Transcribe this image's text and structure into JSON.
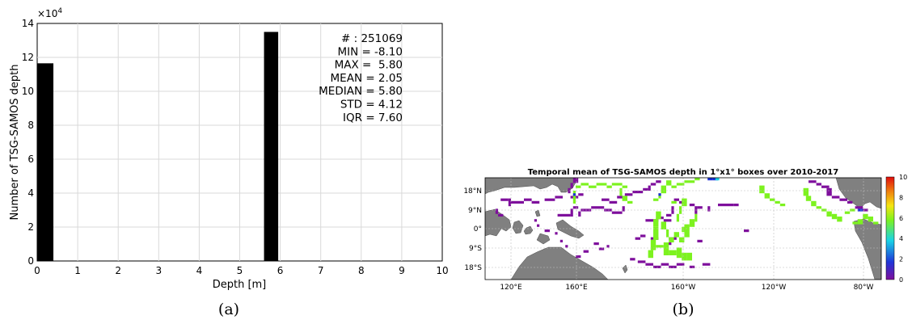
{
  "chart_data": [
    {
      "type": "bar",
      "panel_label": "(a)",
      "xlabel": "Depth [m]",
      "ylabel": "Number of TSG-SAMOS depth",
      "y_multiplier": "×10",
      "y_exponent": "4",
      "xlim": [
        0,
        10
      ],
      "ylim": [
        0,
        14
      ],
      "xticks": [
        "0",
        "1",
        "2",
        "3",
        "4",
        "5",
        "6",
        "7",
        "8",
        "9",
        "10"
      ],
      "yticks": [
        "0",
        "2",
        "4",
        "6",
        "8",
        "10",
        "12",
        "14"
      ],
      "grid": true,
      "bar_color": "#000000",
      "bars": [
        {
          "x0": 0.0,
          "x1": 0.4,
          "value": 11.65
        },
        {
          "x0": 5.6,
          "x1": 5.95,
          "value": 13.5
        }
      ],
      "stats": [
        "# : 251069",
        "MIN = -8.10",
        "MAX =  5.80",
        "MEAN = 2.05",
        "MEDIAN = 5.80",
        "STD = 4.12",
        "IQR = 7.60"
      ]
    },
    {
      "type": "heatmap",
      "panel_label": "(b)",
      "title": "Temporal mean of TSG-SAMOS depth in 1°x1° boxes over 2010-2017",
      "xtick_labels": [
        "120°E",
        "160°E",
        "160°W",
        "120°W",
        "80°W"
      ],
      "ytick_labels": [
        "18°N",
        "9°N",
        "0°",
        "9°S",
        "18°S"
      ],
      "colorbar": {
        "min": 0,
        "max": 10,
        "ticks": [
          "10",
          "8",
          "6",
          "4",
          "2",
          "0"
        ],
        "colors": [
          "#7e0f9c",
          "#2035d8",
          "#19d3e6",
          "#7df21f",
          "#f5e512",
          "#f0800f",
          "#e00d0d"
        ]
      },
      "land_color": "#808080",
      "value_colors": {
        "low": "#7e0f9c",
        "mid": "#7df21f",
        "high": "#1a2fd6"
      }
    }
  ]
}
